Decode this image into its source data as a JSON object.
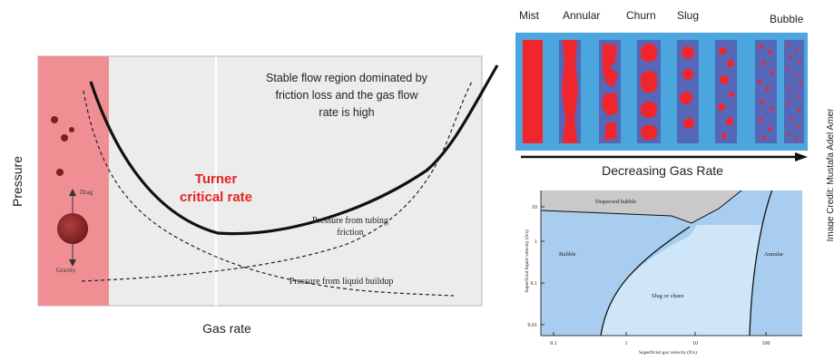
{
  "left_panel": {
    "y_axis_label": "Pressure",
    "x_axis_label": "Gas rate",
    "stable_region_text": [
      "Stable flow region dominated by",
      "friction loss and the gas flow",
      "rate is high"
    ],
    "turner_label": [
      "Turner",
      "critical rate"
    ],
    "tubing_friction_label": [
      "Pressure from tubing",
      "friction"
    ],
    "liquid_buildup_label": "Pressure from liquid buildup",
    "drag_label": "Drag",
    "gravity_label": "Gravity",
    "colors": {
      "unstable_region": "#f08f93",
      "chart_bg": "#ececec",
      "turner": "#e8231f"
    }
  },
  "flow_patterns": {
    "labels": [
      "Mist",
      "Annular",
      "Churn",
      "Slug",
      "Bubble"
    ],
    "arrow_label": "Decreasing Gas Rate",
    "colors": {
      "gas": "#f1262c",
      "liquid": "#5667b7",
      "frame": "#4aa6dd"
    }
  },
  "flow_map": {
    "y_axis_label": "Superficial liquid velocity (ft/s)",
    "x_axis_label": "Superficial gas velocity (ft/s)",
    "y_ticks": [
      "10",
      "1",
      "0.1",
      "0.01"
    ],
    "x_ticks": [
      "0.1",
      "1",
      "10",
      "100"
    ],
    "region_labels": {
      "dispersed_bubble": "Dispersed bubble",
      "bubble": "Bubble",
      "slug_churn": "Slug or churn",
      "annular": "Annular"
    },
    "colors": {
      "dispersed": "#c9c9c9",
      "bubble": "#a8cdee",
      "slug": "#cfe6f8",
      "annular": "#a8cdee"
    }
  },
  "credit": "Image Credit: Mustafa Adel Amer"
}
